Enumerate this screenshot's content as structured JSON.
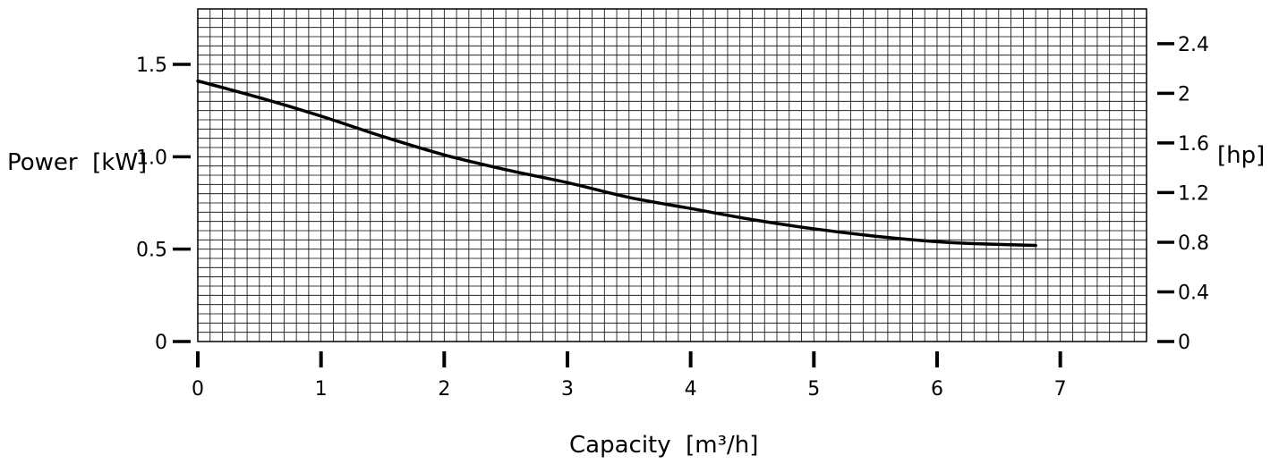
{
  "chart_data": {
    "type": "line",
    "title": "",
    "xlabel": "Capacity  [m³/h]",
    "ylabel": "Power  [kW]",
    "y2label": "[hp]",
    "xlim": [
      0,
      7.7
    ],
    "ylim": [
      0,
      1.8
    ],
    "y2lim": [
      0,
      2.68
    ],
    "x_ticks": [
      0,
      1,
      2,
      3,
      4,
      5,
      6,
      7
    ],
    "x_tick_labels": [
      "0",
      "1",
      "2",
      "3",
      "4",
      "5",
      "6",
      "7"
    ],
    "y_ticks": [
      0,
      0.5,
      1.0,
      1.5
    ],
    "y_tick_labels": [
      "0",
      "0.5",
      "1.0",
      "1.5"
    ],
    "y2_ticks": [
      0,
      0.4,
      0.8,
      1.2,
      1.6,
      2.0,
      2.4
    ],
    "y2_tick_labels": [
      "0",
      "0.4",
      "0.8",
      "1.2",
      "1.6",
      "2",
      "2.4"
    ],
    "grid": true,
    "legend": "none",
    "series": [
      {
        "x": [
          0,
          0.5,
          1.0,
          1.5,
          2.0,
          2.5,
          3.0,
          3.5,
          4.0,
          4.5,
          5.0,
          5.5,
          6.0,
          6.3,
          6.8
        ],
        "y": [
          1.41,
          1.32,
          1.22,
          1.11,
          1.01,
          0.93,
          0.86,
          0.78,
          0.72,
          0.66,
          0.61,
          0.57,
          0.54,
          0.53,
          0.52
        ],
        "color": "#000000"
      }
    ]
  }
}
